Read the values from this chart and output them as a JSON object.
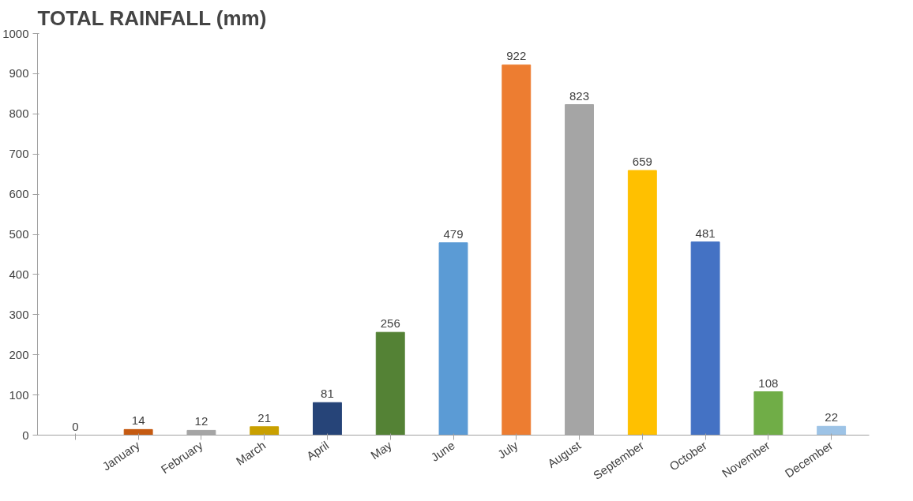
{
  "chart_data": {
    "type": "bar",
    "title": "TOTAL RAINFALL (mm)",
    "categories": [
      null,
      "January",
      "February",
      "March",
      "April",
      "May",
      "June",
      "July",
      "August",
      "September",
      "October",
      "November",
      "December"
    ],
    "values": [
      0,
      14,
      12,
      21,
      81,
      256,
      479,
      922,
      823,
      659,
      481,
      108,
      22
    ],
    "colors": [
      "#4472c4",
      "#c55a11",
      "#a5a5a5",
      "#c9a000",
      "#264478",
      "#548235",
      "#5b9bd5",
      "#ed7d31",
      "#a5a5a5",
      "#ffc000",
      "#4472c4",
      "#70ad47",
      "#9dc3e6"
    ],
    "ylim": [
      0,
      1000
    ],
    "yticks": [
      0,
      100,
      200,
      300,
      400,
      500,
      600,
      700,
      800,
      900,
      1000
    ],
    "data_labels": true,
    "grid": false
  }
}
